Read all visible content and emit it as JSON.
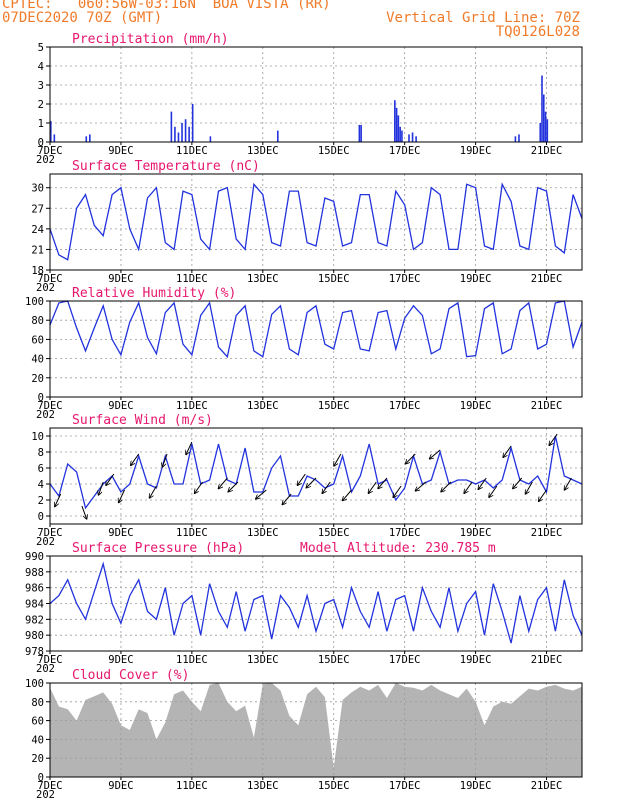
{
  "header": {
    "source": "CPTEC:",
    "location": "060:56W-03:16N  BOA VISTA (RR)",
    "date": "07DEC2020 70Z (GMT)",
    "grid_line": "Vertical Grid Line: 70Z",
    "code": "TQ0126L028"
  },
  "x_labels": [
    "7DEC",
    "9DEC",
    "11DEC",
    "13DEC",
    "15DEC",
    "17DEC",
    "19DEC",
    "21DEC"
  ],
  "year_fragment": "202",
  "altitude_label": "Model Altitude: 230.785 m",
  "colors": {
    "line": "#2233dd",
    "cloud": "#b4b4b4",
    "arrow": "#000000",
    "title": "#e6176e",
    "header": "#f07b2a"
  },
  "chart_data": [
    {
      "type": "bar",
      "title": "Precipitation (mm/h)",
      "ylim": [
        0,
        5
      ],
      "yticks": [
        0,
        1,
        2,
        3,
        4,
        5
      ],
      "x_range_days": [
        7,
        22
      ],
      "x": [
        7.0,
        7.1,
        8.0,
        8.1,
        10.4,
        10.5,
        10.6,
        10.7,
        10.8,
        10.9,
        11.0,
        11.5,
        13.4,
        15.7,
        15.75,
        16.7,
        16.75,
        16.8,
        16.85,
        16.9,
        17.1,
        17.2,
        17.3,
        20.1,
        20.2,
        20.8,
        20.85,
        20.9,
        20.95,
        21.0
      ],
      "values": [
        1.1,
        0.4,
        0.3,
        0.4,
        1.6,
        0.8,
        0.5,
        1.0,
        1.2,
        0.8,
        2.0,
        0.3,
        0.6,
        0.9,
        0.9,
        2.2,
        1.8,
        1.4,
        0.8,
        0.6,
        0.4,
        0.5,
        0.3,
        0.3,
        0.4,
        1.0,
        3.5,
        2.5,
        1.6,
        1.2
      ]
    },
    {
      "type": "line",
      "title": "Surface Temperature (nC)",
      "ylim": [
        18,
        32
      ],
      "yticks": [
        18,
        21,
        24,
        27,
        30
      ],
      "x": [
        7.0,
        7.25,
        7.5,
        7.75,
        8.0,
        8.25,
        8.5,
        8.75,
        9.0,
        9.25,
        9.5,
        9.75,
        10.0,
        10.25,
        10.5,
        10.75,
        11.0,
        11.25,
        11.5,
        11.75,
        12.0,
        12.25,
        12.5,
        12.75,
        13.0,
        13.25,
        13.5,
        13.75,
        14.0,
        14.25,
        14.5,
        14.75,
        15.0,
        15.25,
        15.5,
        15.75,
        16.0,
        16.25,
        16.5,
        16.75,
        17.0,
        17.25,
        17.5,
        17.75,
        18.0,
        18.25,
        18.5,
        18.75,
        19.0,
        19.25,
        19.5,
        19.75,
        20.0,
        20.25,
        20.5,
        20.75,
        21.0,
        21.25,
        21.5,
        21.75,
        22.0
      ],
      "values": [
        24.0,
        20.2,
        19.5,
        27.0,
        29.0,
        24.5,
        23.0,
        29.0,
        30.0,
        24.0,
        21.0,
        28.5,
        30.0,
        22.0,
        21.0,
        29.5,
        29.0,
        22.5,
        21.0,
        29.5,
        30.0,
        22.5,
        21.0,
        30.5,
        29.0,
        22.0,
        21.5,
        29.5,
        29.5,
        22.0,
        21.5,
        28.5,
        28.0,
        21.5,
        22.0,
        29.0,
        29.0,
        22.0,
        21.5,
        29.5,
        27.5,
        21.0,
        22.0,
        30.0,
        29.0,
        21.0,
        21.0,
        30.5,
        30.0,
        21.5,
        21.0,
        30.5,
        28.0,
        21.5,
        21.0,
        30.0,
        29.5,
        21.5,
        20.5,
        29.0,
        25.5
      ]
    },
    {
      "type": "line",
      "title": "Relative Humidity (%)",
      "ylim": [
        0,
        100
      ],
      "yticks": [
        0,
        20,
        40,
        60,
        80,
        100
      ],
      "x": [
        7.0,
        7.25,
        7.5,
        7.75,
        8.0,
        8.25,
        8.5,
        8.75,
        9.0,
        9.25,
        9.5,
        9.75,
        10.0,
        10.25,
        10.5,
        10.75,
        11.0,
        11.25,
        11.5,
        11.75,
        12.0,
        12.25,
        12.5,
        12.75,
        13.0,
        13.25,
        13.5,
        13.75,
        14.0,
        14.25,
        14.5,
        14.75,
        15.0,
        15.25,
        15.5,
        15.75,
        16.0,
        16.25,
        16.5,
        16.75,
        17.0,
        17.25,
        17.5,
        17.75,
        18.0,
        18.25,
        18.5,
        18.75,
        19.0,
        19.25,
        19.5,
        19.75,
        20.0,
        20.25,
        20.5,
        20.75,
        21.0,
        21.25,
        21.5,
        21.75,
        22.0
      ],
      "values": [
        75.0,
        98.0,
        100.0,
        72.0,
        48.0,
        72.0,
        95.0,
        60.0,
        44.0,
        78.0,
        98.0,
        62.0,
        45.0,
        88.0,
        98.0,
        55.0,
        44.0,
        85.0,
        98.0,
        52.0,
        42.0,
        85.0,
        95.0,
        48.0,
        42.0,
        86.0,
        95.0,
        50.0,
        44.0,
        88.0,
        95.0,
        55.0,
        50.0,
        88.0,
        90.0,
        50.0,
        48.0,
        88.0,
        90.0,
        50.0,
        82.0,
        95.0,
        85.0,
        45.0,
        50.0,
        92.0,
        98.0,
        42.0,
        43.0,
        92.0,
        98.0,
        45.0,
        50.0,
        90.0,
        98.0,
        50.0,
        55.0,
        98.0,
        100.0,
        52.0,
        78.0
      ]
    },
    {
      "type": "line",
      "title": "Surface Wind (m/s)",
      "ylim": [
        -1,
        11
      ],
      "yticks": [
        0,
        2,
        4,
        6,
        8,
        10
      ],
      "x": [
        7.0,
        7.25,
        7.5,
        7.75,
        8.0,
        8.25,
        8.5,
        8.75,
        9.0,
        9.25,
        9.5,
        9.75,
        10.0,
        10.25,
        10.5,
        10.75,
        11.0,
        11.25,
        11.5,
        11.75,
        12.0,
        12.25,
        12.5,
        12.75,
        13.0,
        13.25,
        13.5,
        13.75,
        14.0,
        14.25,
        14.5,
        14.75,
        15.0,
        15.25,
        15.5,
        15.75,
        16.0,
        16.25,
        16.5,
        16.75,
        17.0,
        17.25,
        17.5,
        17.75,
        18.0,
        18.25,
        18.5,
        18.75,
        19.0,
        19.25,
        19.5,
        19.75,
        20.0,
        20.25,
        20.5,
        20.75,
        21.0,
        21.25,
        21.5,
        21.75,
        22.0
      ],
      "values": [
        4.0,
        2.5,
        6.5,
        5.5,
        1.0,
        2.5,
        4.0,
        5.0,
        3.0,
        4.0,
        7.5,
        4.0,
        3.5,
        7.5,
        4.0,
        4.0,
        9.0,
        4.0,
        4.5,
        9.0,
        4.5,
        4.0,
        8.5,
        3.0,
        3.0,
        6.0,
        7.5,
        2.5,
        2.5,
        5.0,
        4.5,
        3.5,
        4.0,
        7.5,
        3.0,
        5.0,
        9.0,
        4.0,
        4.5,
        2.0,
        3.5,
        7.5,
        4.0,
        4.5,
        8.0,
        4.0,
        4.5,
        4.5,
        4.0,
        4.5,
        3.5,
        4.5,
        8.5,
        4.5,
        4.0,
        5.0,
        3.0,
        10.0,
        5.0,
        4.5,
        4.0
      ],
      "arrows": [
        [
          7.3,
          205
        ],
        [
          7.9,
          160
        ],
        [
          8.5,
          200
        ],
        [
          8.8,
          215
        ],
        [
          9.1,
          205
        ],
        [
          9.5,
          215
        ],
        [
          10.0,
          210
        ],
        [
          10.3,
          200
        ],
        [
          11.0,
          205
        ],
        [
          11.3,
          215
        ],
        [
          12.0,
          220
        ],
        [
          12.3,
          225
        ],
        [
          13.1,
          230
        ],
        [
          13.8,
          220
        ],
        [
          14.2,
          215
        ],
        [
          14.5,
          225
        ],
        [
          14.9,
          215
        ],
        [
          15.2,
          210
        ],
        [
          15.5,
          220
        ],
        [
          16.2,
          215
        ],
        [
          16.5,
          220
        ],
        [
          16.9,
          215
        ],
        [
          17.3,
          225
        ],
        [
          17.6,
          230
        ],
        [
          18.0,
          230
        ],
        [
          18.3,
          225
        ],
        [
          18.9,
          215
        ],
        [
          19.3,
          215
        ],
        [
          19.6,
          215
        ],
        [
          20.0,
          215
        ],
        [
          20.3,
          220
        ],
        [
          20.6,
          210
        ],
        [
          21.0,
          215
        ],
        [
          21.3,
          215
        ],
        [
          21.7,
          210
        ]
      ]
    },
    {
      "type": "line",
      "title": "Surface Pressure (hPa)",
      "ylim": [
        978,
        990
      ],
      "yticks": [
        978,
        980,
        982,
        984,
        986,
        988,
        990
      ],
      "x": [
        7.0,
        7.25,
        7.5,
        7.75,
        8.0,
        8.25,
        8.5,
        8.75,
        9.0,
        9.25,
        9.5,
        9.75,
        10.0,
        10.25,
        10.5,
        10.75,
        11.0,
        11.25,
        11.5,
        11.75,
        12.0,
        12.25,
        12.5,
        12.75,
        13.0,
        13.25,
        13.5,
        13.75,
        14.0,
        14.25,
        14.5,
        14.75,
        15.0,
        15.25,
        15.5,
        15.75,
        16.0,
        16.25,
        16.5,
        16.75,
        17.0,
        17.25,
        17.5,
        17.75,
        18.0,
        18.25,
        18.5,
        18.75,
        19.0,
        19.25,
        19.5,
        19.75,
        20.0,
        20.25,
        20.5,
        20.75,
        21.0,
        21.25,
        21.5,
        21.75,
        22.0
      ],
      "values": [
        984.0,
        985.0,
        987.0,
        984.0,
        982.0,
        985.5,
        989.0,
        984.0,
        981.5,
        985.0,
        987.0,
        983.0,
        982.0,
        986.0,
        980.0,
        984.0,
        985.0,
        980.0,
        986.5,
        983.0,
        981.0,
        985.5,
        980.5,
        984.5,
        985.0,
        979.5,
        985.0,
        983.5,
        981.0,
        985.0,
        980.5,
        984.0,
        984.5,
        981.0,
        986.0,
        983.0,
        981.0,
        985.5,
        980.5,
        984.5,
        985.0,
        980.5,
        986.0,
        983.0,
        981.0,
        986.0,
        980.5,
        984.0,
        985.5,
        980.0,
        986.5,
        983.0,
        979.0,
        985.0,
        980.5,
        984.5,
        986.0,
        980.5,
        987.0,
        982.5,
        980.0
      ]
    },
    {
      "type": "area",
      "title": "Cloud Cover (%)",
      "ylim": [
        0,
        100
      ],
      "yticks": [
        0,
        20,
        40,
        60,
        80,
        100
      ],
      "x": [
        7.0,
        7.25,
        7.5,
        7.75,
        8.0,
        8.25,
        8.5,
        8.75,
        9.0,
        9.25,
        9.5,
        9.75,
        10.0,
        10.25,
        10.5,
        10.75,
        11.0,
        11.25,
        11.5,
        11.75,
        12.0,
        12.25,
        12.5,
        12.75,
        13.0,
        13.25,
        13.5,
        13.75,
        14.0,
        14.25,
        14.5,
        14.75,
        15.0,
        15.25,
        15.5,
        15.75,
        16.0,
        16.25,
        16.5,
        16.75,
        17.0,
        17.25,
        17.5,
        17.75,
        18.0,
        18.25,
        18.5,
        18.75,
        19.0,
        19.25,
        19.5,
        19.75,
        20.0,
        20.25,
        20.5,
        20.75,
        21.0,
        21.25,
        21.5,
        21.75,
        22.0
      ],
      "values": [
        95.0,
        75.0,
        72.0,
        60.0,
        82.0,
        86.0,
        90.0,
        78.0,
        55.0,
        50.0,
        72.0,
        68.0,
        40.0,
        58.0,
        88.0,
        92.0,
        80.0,
        70.0,
        98.0,
        100.0,
        80.0,
        70.0,
        76.0,
        42.0,
        99.0,
        100.0,
        92.0,
        65.0,
        55.0,
        88.0,
        96.0,
        85.0,
        10.0,
        82.0,
        90.0,
        96.0,
        92.0,
        98.0,
        84.0,
        100.0,
        96.0,
        95.0,
        92.0,
        98.0,
        92.0,
        88.0,
        84.0,
        94.0,
        80.0,
        55.0,
        75.0,
        80.0,
        78.0,
        86.0,
        94.0,
        92.0,
        96.0,
        98.0,
        94.0,
        92.0,
        96.0
      ]
    }
  ]
}
